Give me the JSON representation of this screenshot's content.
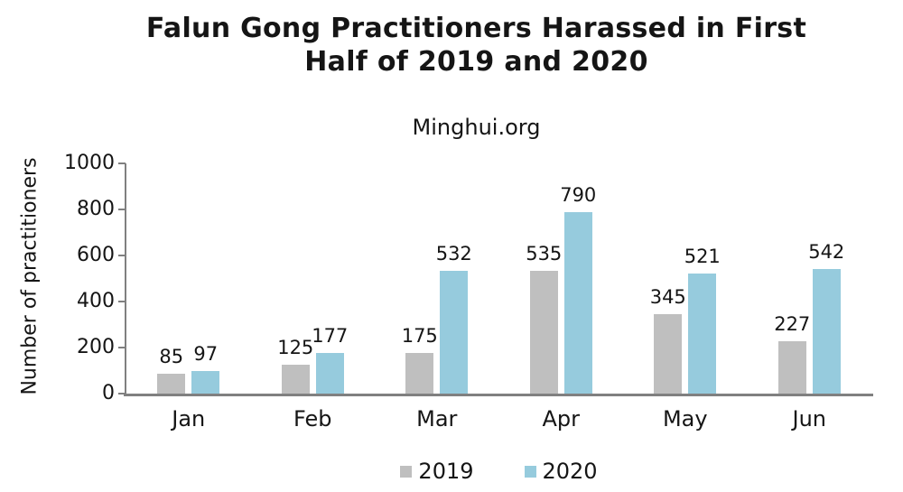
{
  "header": {
    "title_line1": "Falun Gong Practitioners Harassed in First",
    "title_line2": "Half of 2019 and 2020"
  },
  "chart_data": {
    "type": "bar",
    "title": "Falun Gong Practitioners Harassed in First Half of 2019 and 2020",
    "subtitle": "Minghui.org",
    "ylabel": "Number of practitioners",
    "xlabel": "",
    "categories": [
      "Jan",
      "Feb",
      "Mar",
      "Apr",
      "May",
      "Jun"
    ],
    "series": [
      {
        "name": "2019",
        "color": "#bfbfbf",
        "values": [
          85,
          125,
          175,
          535,
          345,
          227
        ]
      },
      {
        "name": "2020",
        "color": "#96cbdd",
        "values": [
          97,
          177,
          532,
          790,
          521,
          542
        ]
      }
    ],
    "ylim": [
      0,
      1000
    ],
    "yticks": [
      0,
      200,
      400,
      600,
      800,
      1000
    ],
    "grid": false,
    "legend_position": "bottom",
    "axis_color": "#808080",
    "text_color": "#151515"
  }
}
